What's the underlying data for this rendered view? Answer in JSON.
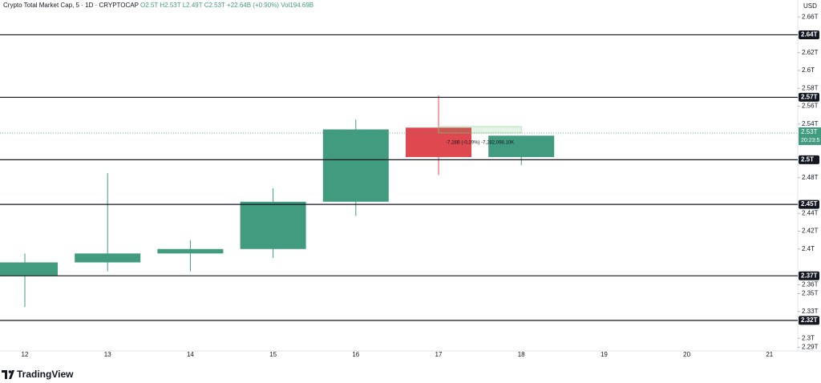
{
  "chart_data": {
    "type": "candlestick",
    "header": {
      "symbol": "Crypto Total Market Cap, 5 · 1D · CRYPTOCAP",
      "open": "O2.5T",
      "high": "H2.53T",
      "low": "L2.49T",
      "close": "C2.53T",
      "change": "+22.64B (+0.90%)",
      "volume": "Vol194.69B"
    },
    "currency": "USD",
    "categories": [
      "12",
      "13",
      "14",
      "15",
      "16",
      "17",
      "18",
      "19",
      "20",
      "21"
    ],
    "open": [
      2.37,
      2.385,
      2.395,
      2.4,
      2.453,
      2.536,
      2.503,
      null,
      null,
      null
    ],
    "high": [
      2.395,
      2.485,
      2.41,
      2.468,
      2.545,
      2.572,
      2.527,
      null,
      null,
      null
    ],
    "low": [
      2.335,
      2.375,
      2.375,
      2.39,
      2.437,
      2.483,
      2.494,
      null,
      null,
      null
    ],
    "close": [
      2.385,
      2.395,
      2.4,
      2.453,
      2.534,
      2.503,
      2.527,
      null,
      null,
      null
    ],
    "up_color": "#419b7f",
    "down_color": "#e0484f",
    "ylim": [
      2.284,
      2.679
    ],
    "yticks": [
      {
        "value": 2.66,
        "label": "2.66T"
      },
      {
        "value": 2.62,
        "label": "2.62T"
      },
      {
        "value": 2.6,
        "label": "2.6T"
      },
      {
        "value": 2.58,
        "label": "2.58T"
      },
      {
        "value": 2.56,
        "label": "2.56T"
      },
      {
        "value": 2.54,
        "label": "2.54T"
      },
      {
        "value": 2.48,
        "label": "2.48T"
      },
      {
        "value": 2.44,
        "label": "2.44T"
      },
      {
        "value": 2.42,
        "label": "2.42T"
      },
      {
        "value": 2.4,
        "label": "2.4T"
      },
      {
        "value": 2.36,
        "label": "2.36T"
      },
      {
        "value": 2.35,
        "label": "2.35T"
      },
      {
        "value": 2.33,
        "label": "2.33T"
      },
      {
        "value": 2.3,
        "label": "2.3T"
      },
      {
        "value": 2.29,
        "label": "2.29T"
      }
    ],
    "levels": [
      {
        "value": 2.64,
        "label": "2.64T"
      },
      {
        "value": 2.57,
        "label": "2.57T"
      },
      {
        "value": 2.5,
        "label": "2.5T"
      },
      {
        "value": 2.45,
        "label": "2.45T"
      },
      {
        "value": 2.37,
        "label": "2.37T"
      },
      {
        "value": 2.32,
        "label": "2.32T"
      }
    ],
    "last_price": {
      "value": 2.53,
      "label": "2.53T",
      "countdown": "20:23:5"
    },
    "measure_label": "-7.28B (-0.29%) -7,282,098.10K",
    "brand": "TradingView"
  }
}
